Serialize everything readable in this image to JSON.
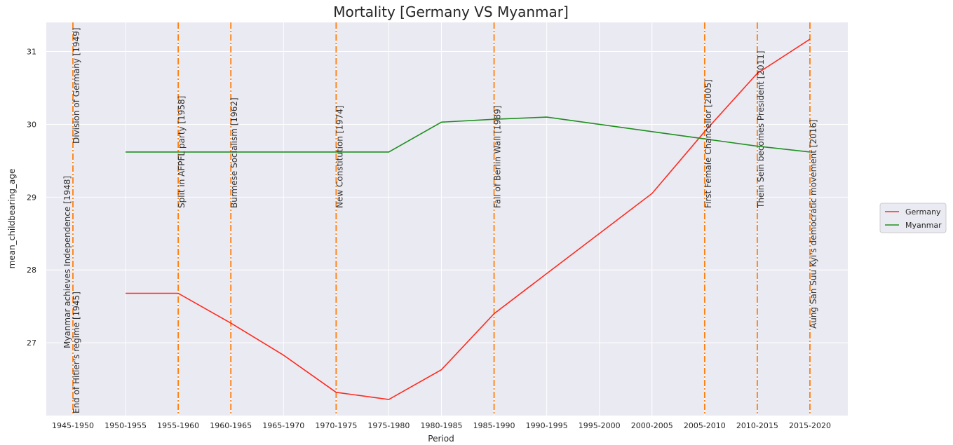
{
  "chart_data": {
    "type": "line",
    "title": "Mortality [Germany VS Myanmar]",
    "xlabel": "Period",
    "ylabel": "mean_childbearing_age",
    "categories": [
      "1945-1950",
      "1950-1955",
      "1955-1960",
      "1960-1965",
      "1965-1970",
      "1970-1975",
      "1975-1980",
      "1980-1985",
      "1985-1990",
      "1990-1995",
      "1995-2000",
      "2000-2005",
      "2005-2010",
      "2010-2015",
      "2015-2020"
    ],
    "yticks": [
      27,
      28,
      29,
      30,
      31
    ],
    "ylim": [
      26.0,
      31.4
    ],
    "grid": true,
    "legend_position": "right",
    "series": [
      {
        "name": "Germany",
        "color": "#ff2a1f",
        "values": [
          null,
          27.68,
          27.68,
          27.27,
          26.83,
          26.32,
          26.22,
          26.63,
          27.4,
          27.95,
          28.5,
          29.05,
          29.9,
          30.7,
          31.17
        ]
      },
      {
        "name": "Myanmar",
        "color": "#1f8f1f",
        "values": [
          null,
          29.62,
          29.62,
          29.62,
          29.62,
          29.62,
          29.62,
          30.03,
          30.07,
          30.1,
          30.0,
          29.9,
          29.8,
          29.7,
          29.62
        ]
      }
    ],
    "events": [
      {
        "label": "End of Hitler's regime [1945]",
        "period_index": 0,
        "anchor": "bottom"
      },
      {
        "label": "Myanmar achieves Independence [1948]",
        "period_index": 0,
        "anchor": "bottom-left"
      },
      {
        "label": "Division of Germany [1949]",
        "period_index": 0,
        "anchor": "top"
      },
      {
        "label": "Split in AFPFL party [1958]",
        "period_index": 2,
        "anchor": "mid"
      },
      {
        "label": "Burmese Socialism [1962]",
        "period_index": 3,
        "anchor": "mid"
      },
      {
        "label": "New Constitution [1974]",
        "period_index": 5,
        "anchor": "mid"
      },
      {
        "label": "Fall of Berlin Wall [1989]",
        "period_index": 8,
        "anchor": "mid"
      },
      {
        "label": "First Female Chancellor [2005]",
        "period_index": 12,
        "anchor": "mid"
      },
      {
        "label": "Thein Sein becomes President [2011]",
        "period_index": 13,
        "anchor": "mid"
      },
      {
        "label": "Aung San Suu Kyi's democratic movement [2016]",
        "period_index": 14,
        "anchor": "low"
      }
    ],
    "event_line_color": "#ff7f0e"
  }
}
